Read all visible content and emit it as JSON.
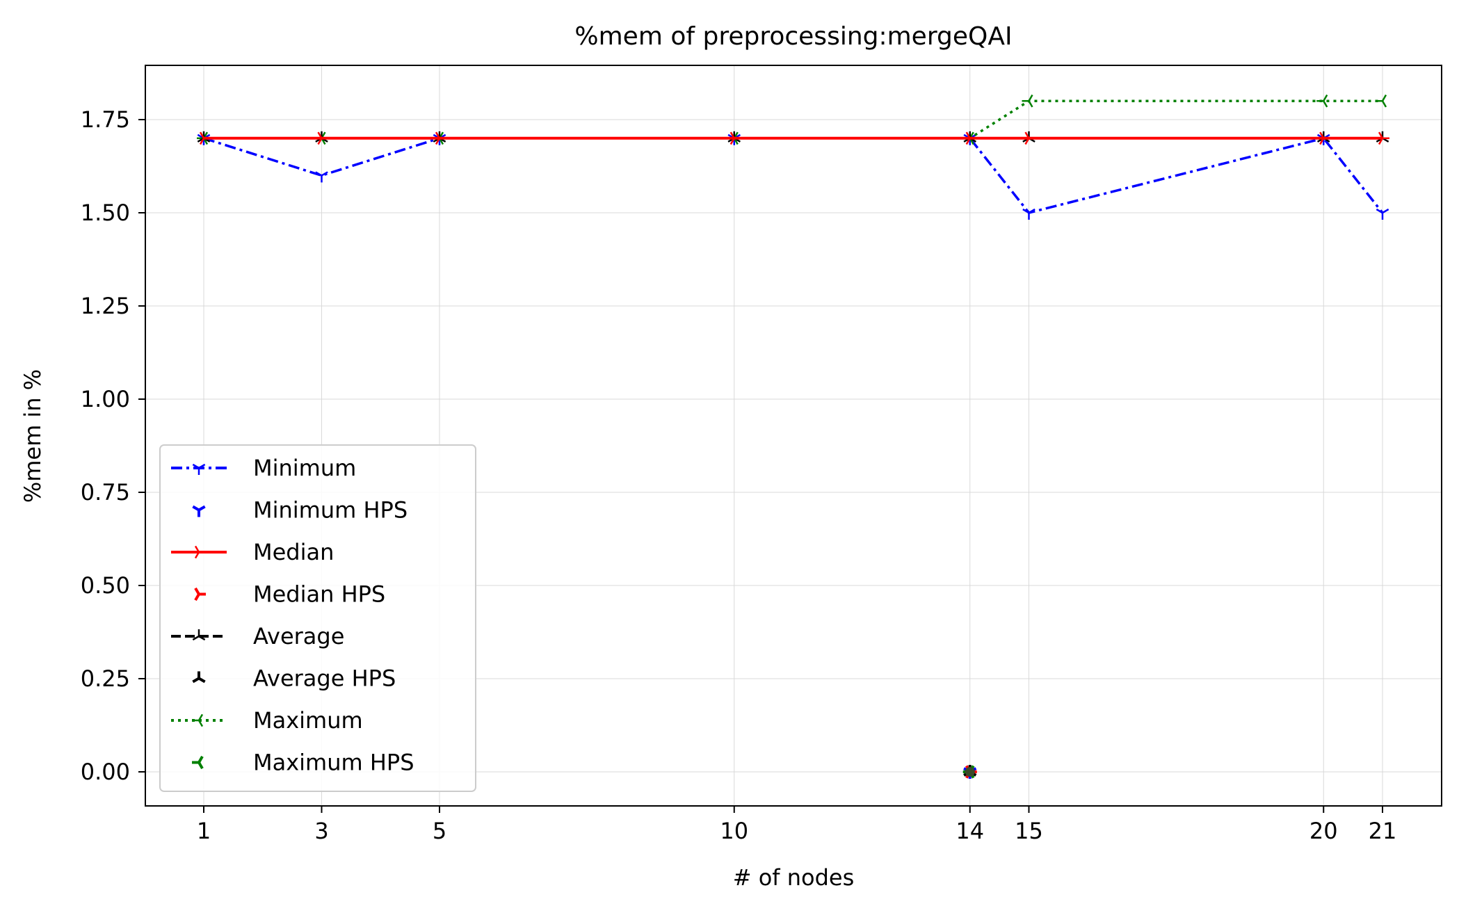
{
  "chart_data": {
    "type": "line",
    "title": "%mem of preprocessing:mergeQAI",
    "xlabel": "# of nodes",
    "ylabel": "%mem in %",
    "x": [
      1,
      3,
      5,
      10,
      14,
      15,
      20,
      21
    ],
    "x_ticks": [
      "1",
      "3",
      "5",
      "10",
      "14",
      "15",
      "20",
      "21"
    ],
    "y_ticks": [
      "0.00",
      "0.25",
      "0.50",
      "0.75",
      "1.00",
      "1.25",
      "1.50",
      "1.75"
    ],
    "xlim": [
      0,
      22
    ],
    "ylim": [
      -0.085,
      1.89
    ],
    "grid": true,
    "legend_position": "lower-left",
    "series": [
      {
        "name": "Minimum",
        "color": "#0000ff",
        "dash": "dashdot",
        "values": [
          1.7,
          1.6,
          1.7,
          1.7,
          1.7,
          1.5,
          1.7,
          1.5
        ]
      },
      {
        "name": "Median",
        "color": "#ff0000",
        "dash": "solid",
        "values": [
          1.7,
          1.7,
          1.7,
          1.7,
          1.7,
          1.7,
          1.7,
          1.7
        ]
      },
      {
        "name": "Average",
        "color": "#000000",
        "dash": "dashed",
        "values": [
          1.7,
          1.7,
          1.7,
          1.7,
          1.7,
          1.7,
          1.7,
          1.7
        ]
      },
      {
        "name": "Maximum",
        "color": "#008000",
        "dash": "dotted",
        "values": [
          1.7,
          1.7,
          1.7,
          1.7,
          1.7,
          1.8,
          1.8,
          1.8
        ]
      }
    ],
    "hps_series": [
      {
        "name": "Minimum HPS",
        "color": "#0000ff",
        "x": [
          14
        ],
        "values": [
          0
        ]
      },
      {
        "name": "Median HPS",
        "color": "#ff0000",
        "x": [
          14
        ],
        "values": [
          0
        ]
      },
      {
        "name": "Average HPS",
        "color": "#000000",
        "x": [
          14
        ],
        "values": [
          0
        ]
      },
      {
        "name": "Maximum HPS",
        "color": "#008000",
        "x": [
          14
        ],
        "values": [
          0
        ]
      }
    ],
    "legend": [
      "Minimum",
      "Minimum HPS",
      "Median",
      "Median HPS",
      "Average",
      "Average HPS",
      "Maximum",
      "Maximum HPS"
    ]
  }
}
